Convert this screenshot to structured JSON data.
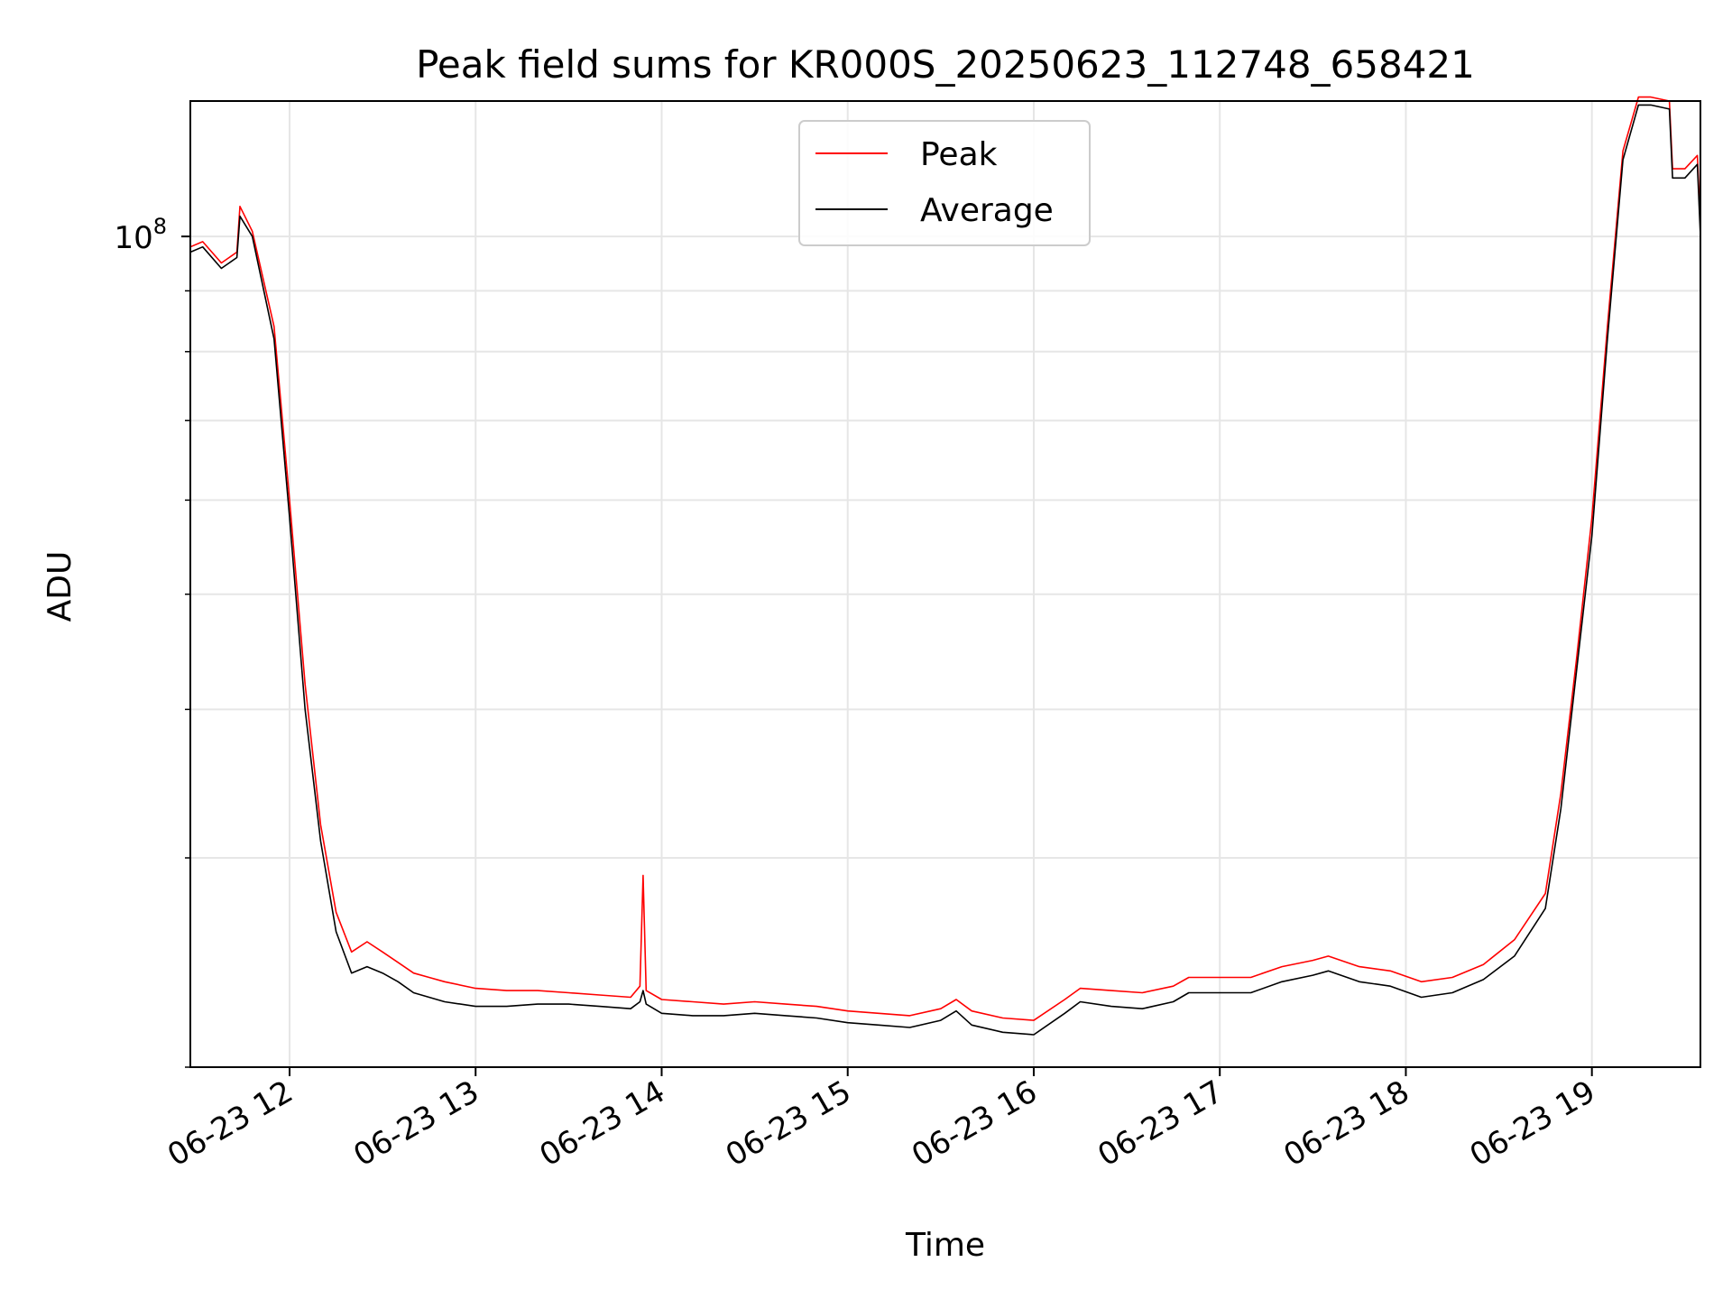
{
  "chart_data": {
    "type": "line",
    "title": "Peak field sums for KR000S_20250623_112748_658421",
    "xlabel": "Time",
    "ylabel": "ADU",
    "y_scale": "log",
    "y_major_tick_label_base": "10",
    "y_major_tick_label_exp": "8",
    "y_major_tick_value": 100000000,
    "ylim": [
      20000000,
      130000000
    ],
    "xlim": [
      "2025-06-23 11:28",
      "2025-06-23 19:35"
    ],
    "x_ticks": [
      "06-23 12",
      "06-23 13",
      "06-23 14",
      "06-23 15",
      "06-23 16",
      "06-23 17",
      "06-23 18",
      "06-23 19"
    ],
    "x_tick_times": [
      "2025-06-23 12:00",
      "2025-06-23 13:00",
      "2025-06-23 14:00",
      "2025-06-23 15:00",
      "2025-06-23 16:00",
      "2025-06-23 17:00",
      "2025-06-23 18:00",
      "2025-06-23 19:00"
    ],
    "grid": true,
    "legend_position": "upper-center",
    "series": [
      {
        "name": "Peak",
        "color": "#ff0000",
        "x": [
          "2025-06-23 11:28",
          "2025-06-23 11:32",
          "2025-06-23 11:38",
          "2025-06-23 11:43",
          "2025-06-23 11:44",
          "2025-06-23 11:48",
          "2025-06-23 11:55",
          "2025-06-23 12:00",
          "2025-06-23 12:05",
          "2025-06-23 12:10",
          "2025-06-23 12:15",
          "2025-06-23 12:20",
          "2025-06-23 12:25",
          "2025-06-23 12:30",
          "2025-06-23 12:35",
          "2025-06-23 12:40",
          "2025-06-23 12:45",
          "2025-06-23 12:50",
          "2025-06-23 13:00",
          "2025-06-23 13:10",
          "2025-06-23 13:20",
          "2025-06-23 13:30",
          "2025-06-23 13:40",
          "2025-06-23 13:50",
          "2025-06-23 13:53",
          "2025-06-23 13:54",
          "2025-06-23 13:55",
          "2025-06-23 14:00",
          "2025-06-23 14:10",
          "2025-06-23 14:20",
          "2025-06-23 14:30",
          "2025-06-23 14:40",
          "2025-06-23 14:50",
          "2025-06-23 15:00",
          "2025-06-23 15:10",
          "2025-06-23 15:20",
          "2025-06-23 15:30",
          "2025-06-23 15:35",
          "2025-06-23 15:40",
          "2025-06-23 15:50",
          "2025-06-23 16:00",
          "2025-06-23 16:10",
          "2025-06-23 16:15",
          "2025-06-23 16:25",
          "2025-06-23 16:35",
          "2025-06-23 16:45",
          "2025-06-23 16:50",
          "2025-06-23 17:00",
          "2025-06-23 17:10",
          "2025-06-23 17:20",
          "2025-06-23 17:30",
          "2025-06-23 17:35",
          "2025-06-23 17:45",
          "2025-06-23 17:55",
          "2025-06-23 18:05",
          "2025-06-23 18:15",
          "2025-06-23 18:25",
          "2025-06-23 18:35",
          "2025-06-23 18:45",
          "2025-06-23 18:50",
          "2025-06-23 18:55",
          "2025-06-23 19:00",
          "2025-06-23 19:05",
          "2025-06-23 19:10",
          "2025-06-23 19:15",
          "2025-06-23 19:19",
          "2025-06-23 19:25",
          "2025-06-23 19:26",
          "2025-06-23 19:30",
          "2025-06-23 19:34",
          "2025-06-23 19:35"
        ],
        "values": [
          98000000,
          99000000,
          95000000,
          97000000,
          106000000,
          101000000,
          84000000,
          60000000,
          42000000,
          32000000,
          27000000,
          25000000,
          25500000,
          25000000,
          24500000,
          24000000,
          23800000,
          23600000,
          23300000,
          23200000,
          23200000,
          23100000,
          23000000,
          22900000,
          23400000,
          29000000,
          23200000,
          22800000,
          22700000,
          22600000,
          22700000,
          22600000,
          22500000,
          22300000,
          22200000,
          22100000,
          22400000,
          22800000,
          22300000,
          22000000,
          21900000,
          22800000,
          23300000,
          23200000,
          23100000,
          23400000,
          23800000,
          23800000,
          23800000,
          24300000,
          24600000,
          24800000,
          24300000,
          24100000,
          23600000,
          23800000,
          24400000,
          25600000,
          28000000,
          34000000,
          44000000,
          58000000,
          84000000,
          118000000,
          131000000,
          131000000,
          130000000,
          114000000,
          114000000,
          117000000,
          102000000
        ]
      },
      {
        "name": "Average",
        "color": "#000000",
        "x": [
          "2025-06-23 11:28",
          "2025-06-23 11:32",
          "2025-06-23 11:38",
          "2025-06-23 11:43",
          "2025-06-23 11:44",
          "2025-06-23 11:48",
          "2025-06-23 11:55",
          "2025-06-23 12:00",
          "2025-06-23 12:05",
          "2025-06-23 12:10",
          "2025-06-23 12:15",
          "2025-06-23 12:20",
          "2025-06-23 12:25",
          "2025-06-23 12:30",
          "2025-06-23 12:35",
          "2025-06-23 12:40",
          "2025-06-23 12:45",
          "2025-06-23 12:50",
          "2025-06-23 13:00",
          "2025-06-23 13:10",
          "2025-06-23 13:20",
          "2025-06-23 13:30",
          "2025-06-23 13:40",
          "2025-06-23 13:50",
          "2025-06-23 13:53",
          "2025-06-23 13:54",
          "2025-06-23 13:55",
          "2025-06-23 14:00",
          "2025-06-23 14:10",
          "2025-06-23 14:20",
          "2025-06-23 14:30",
          "2025-06-23 14:40",
          "2025-06-23 14:50",
          "2025-06-23 15:00",
          "2025-06-23 15:10",
          "2025-06-23 15:20",
          "2025-06-23 15:30",
          "2025-06-23 15:35",
          "2025-06-23 15:40",
          "2025-06-23 15:50",
          "2025-06-23 16:00",
          "2025-06-23 16:10",
          "2025-06-23 16:15",
          "2025-06-23 16:25",
          "2025-06-23 16:35",
          "2025-06-23 16:45",
          "2025-06-23 16:50",
          "2025-06-23 17:00",
          "2025-06-23 17:10",
          "2025-06-23 17:20",
          "2025-06-23 17:30",
          "2025-06-23 17:35",
          "2025-06-23 17:45",
          "2025-06-23 17:55",
          "2025-06-23 18:05",
          "2025-06-23 18:15",
          "2025-06-23 18:25",
          "2025-06-23 18:35",
          "2025-06-23 18:45",
          "2025-06-23 18:50",
          "2025-06-23 18:55",
          "2025-06-23 19:00",
          "2025-06-23 19:05",
          "2025-06-23 19:10",
          "2025-06-23 19:15",
          "2025-06-23 19:19",
          "2025-06-23 19:25",
          "2025-06-23 19:26",
          "2025-06-23 19:30",
          "2025-06-23 19:34",
          "2025-06-23 19:35"
        ],
        "values": [
          97000000,
          98000000,
          94000000,
          96000000,
          104000000,
          100000000,
          82000000,
          58000000,
          40000000,
          31000000,
          26000000,
          24000000,
          24300000,
          24000000,
          23600000,
          23100000,
          22900000,
          22700000,
          22500000,
          22500000,
          22600000,
          22600000,
          22500000,
          22400000,
          22700000,
          23200000,
          22600000,
          22200000,
          22100000,
          22100000,
          22200000,
          22100000,
          22000000,
          21800000,
          21700000,
          21600000,
          21900000,
          22300000,
          21700000,
          21400000,
          21300000,
          22200000,
          22700000,
          22500000,
          22400000,
          22700000,
          23100000,
          23100000,
          23100000,
          23600000,
          23900000,
          24100000,
          23600000,
          23400000,
          22900000,
          23100000,
          23700000,
          24800000,
          27200000,
          33000000,
          43000000,
          56000000,
          82000000,
          116000000,
          129000000,
          129000000,
          128000000,
          112000000,
          112000000,
          115000000,
          100000000
        ]
      }
    ]
  }
}
